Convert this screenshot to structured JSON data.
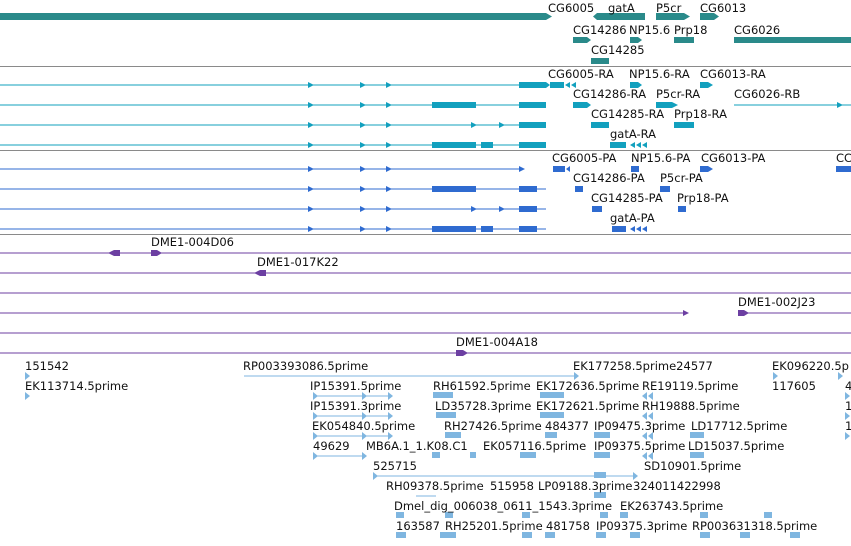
{
  "viewer": {
    "colors": {
      "gene": "#2a8a8a",
      "transcript": "#12a0be",
      "protein": "#2f6bd0",
      "clone": "#6c3fa2",
      "est": "#7fb6e0",
      "divider": "#8a8a8a"
    },
    "tracks": {
      "genes": {
        "labels": [
          "CG6005",
          "gatA",
          "P5cr",
          "CG6013",
          "CG14286",
          "NP15.6",
          "Prp18",
          "CG6026",
          "CG14285"
        ]
      },
      "transcripts": {
        "labels": [
          "CG6005-RA",
          "NP15.6-RA",
          "CG6013-RA",
          "CG14286-RA",
          "P5cr-RA",
          "CG6026-RB",
          "CG14285-RA",
          "Prp18-RA",
          "gatA-RA"
        ]
      },
      "proteins": {
        "labels": [
          "CG6005-PA",
          "NP15.6-PA",
          "CG6013-PA",
          "CC",
          "CG14286-PA",
          "P5cr-PA",
          "CG14285-PA",
          "Prp18-PA",
          "gatA-PA"
        ]
      },
      "clones": {
        "labels": [
          "DME1-004D06",
          "DME1-017K22",
          "DME1-002J23",
          "DME1-004A18"
        ]
      },
      "ests": {
        "labels": [
          "151542",
          "RP003393086.5prime",
          "EK177258.5prime24577",
          "EK096220.5p",
          "EK113714.5prime",
          "117605",
          "4",
          "IP15391.5prime",
          "RH61592.5prime",
          "EK172636.5prime",
          "RE19119.5prime",
          "IP15391.3prime",
          "LD35728.3prime",
          "EK172621.5prime",
          "RH19888.5prime",
          "1",
          "EK054840.5prime",
          "RH27426.5prime",
          "484377",
          "IP09475.3prime",
          "LD17712.5prime",
          "1",
          "49629",
          "MB6A.1_1.K08.C1",
          "EK057116.5prime",
          "IP09375.5prime",
          "LD15037.5prime",
          "525715",
          "SD10901.5prime",
          "RH09378.5prime",
          "515958",
          "LP09188.3prime",
          "324011422998",
          "Dmel_dig_006038_0611_1543.3prime",
          "EK263743.5prime",
          "163587",
          "RH25201.5prime",
          "481758",
          "IP09375.3prime",
          "RP003631318.5prime"
        ]
      }
    }
  }
}
